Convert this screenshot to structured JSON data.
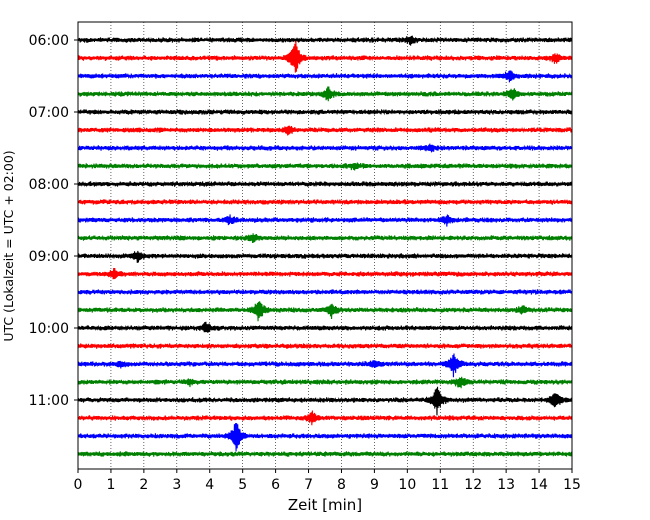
{
  "chart_data": {
    "type": "line",
    "title": "",
    "xlabel": "Zeit  [min]",
    "ylabel": "UTC (Lokalzeit = UTC + 02:00)",
    "xlim": [
      0,
      15
    ],
    "x_ticks": [
      0,
      1,
      2,
      3,
      4,
      5,
      6,
      7,
      8,
      9,
      10,
      11,
      12,
      13,
      14,
      15
    ],
    "y_ticks": [
      "06:00",
      "07:00",
      "08:00",
      "09:00",
      "10:00",
      "11:00"
    ],
    "grid": "vertical dotted",
    "trace_interval_min": 15,
    "colors": [
      "#000000",
      "#ff0000",
      "#0000ff",
      "#008000"
    ],
    "traces": [
      {
        "time": "06:00",
        "color": "#000000",
        "events": [
          {
            "t": 10.1,
            "amp": 0.4
          }
        ]
      },
      {
        "time": "06:15",
        "color": "#ff0000",
        "events": [
          {
            "t": 6.6,
            "amp": 2.0
          },
          {
            "t": 14.5,
            "amp": 0.5
          }
        ]
      },
      {
        "time": "06:30",
        "color": "#0000ff",
        "events": [
          {
            "t": 13.1,
            "amp": 0.6
          }
        ]
      },
      {
        "time": "06:45",
        "color": "#008000",
        "events": [
          {
            "t": 7.6,
            "amp": 0.8
          },
          {
            "t": 13.2,
            "amp": 0.7
          }
        ]
      },
      {
        "time": "07:00",
        "color": "#000000",
        "events": []
      },
      {
        "time": "07:15",
        "color": "#ff0000",
        "events": [
          {
            "t": 6.4,
            "amp": 0.5
          }
        ]
      },
      {
        "time": "07:30",
        "color": "#0000ff",
        "events": [
          {
            "t": 10.7,
            "amp": 0.3
          }
        ]
      },
      {
        "time": "07:45",
        "color": "#008000",
        "events": [
          {
            "t": 8.4,
            "amp": 0.4
          }
        ]
      },
      {
        "time": "08:00",
        "color": "#000000",
        "events": []
      },
      {
        "time": "08:15",
        "color": "#ff0000",
        "events": []
      },
      {
        "time": "08:30",
        "color": "#0000ff",
        "events": [
          {
            "t": 4.6,
            "amp": 0.5
          },
          {
            "t": 11.2,
            "amp": 0.5
          }
        ]
      },
      {
        "time": "08:45",
        "color": "#008000",
        "events": [
          {
            "t": 5.3,
            "amp": 0.4
          }
        ]
      },
      {
        "time": "09:00",
        "color": "#000000",
        "events": [
          {
            "t": 1.8,
            "amp": 0.6
          }
        ]
      },
      {
        "time": "09:15",
        "color": "#ff0000",
        "events": [
          {
            "t": 1.1,
            "amp": 0.5
          }
        ]
      },
      {
        "time": "09:30",
        "color": "#0000ff",
        "events": []
      },
      {
        "time": "09:45",
        "color": "#008000",
        "events": [
          {
            "t": 5.5,
            "amp": 1.3
          },
          {
            "t": 7.7,
            "amp": 0.8
          },
          {
            "t": 13.5,
            "amp": 0.4
          }
        ]
      },
      {
        "time": "10:00",
        "color": "#000000",
        "events": [
          {
            "t": 3.9,
            "amp": 0.6
          }
        ]
      },
      {
        "time": "10:15",
        "color": "#ff0000",
        "events": []
      },
      {
        "time": "10:30",
        "color": "#0000ff",
        "events": [
          {
            "t": 1.3,
            "amp": 0.3
          },
          {
            "t": 9.0,
            "amp": 0.4
          },
          {
            "t": 11.4,
            "amp": 1.4
          }
        ]
      },
      {
        "time": "10:45",
        "color": "#008000",
        "events": [
          {
            "t": 3.4,
            "amp": 0.3
          },
          {
            "t": 11.6,
            "amp": 0.6
          }
        ]
      },
      {
        "time": "11:00",
        "color": "#000000",
        "events": [
          {
            "t": 10.9,
            "amp": 1.6
          },
          {
            "t": 14.5,
            "amp": 0.9
          }
        ]
      },
      {
        "time": "11:15",
        "color": "#ff0000",
        "events": [
          {
            "t": 7.1,
            "amp": 0.7
          }
        ]
      },
      {
        "time": "11:30",
        "color": "#0000ff",
        "events": [
          {
            "t": 4.8,
            "amp": 1.8
          }
        ]
      },
      {
        "time": "11:45",
        "color": "#008000",
        "events": []
      }
    ]
  }
}
